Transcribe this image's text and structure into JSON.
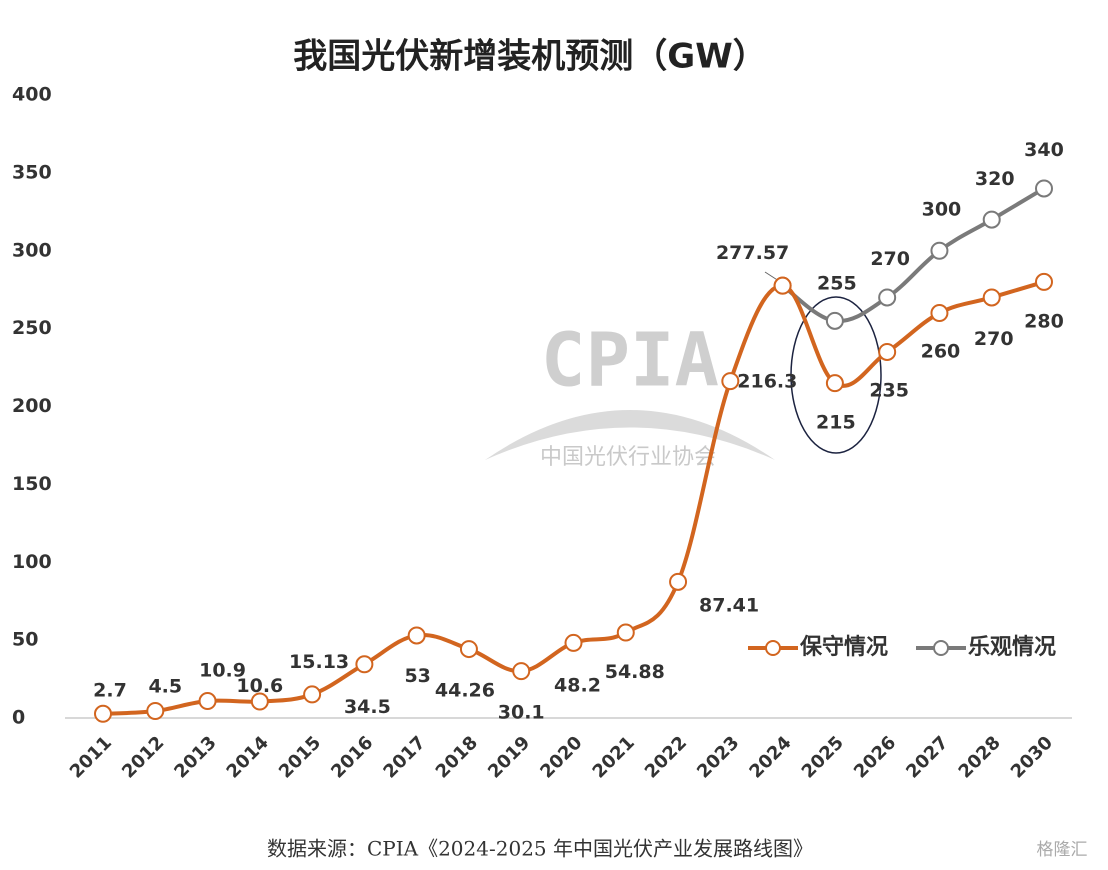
{
  "chart_data": {
    "type": "line",
    "title": "我国光伏新增装机预测（GW）",
    "categories": [
      "2011",
      "2012",
      "2013",
      "2014",
      "2015",
      "2016",
      "2017",
      "2018",
      "2019",
      "2020",
      "2021",
      "2022",
      "2023",
      "2024",
      "2025",
      "2026",
      "2027",
      "2028",
      "2030"
    ],
    "series": [
      {
        "name": "保守情况",
        "color": "#d2651f",
        "values": [
          2.7,
          4.5,
          10.9,
          10.6,
          15.13,
          34.5,
          53,
          44.26,
          30.1,
          48.2,
          54.88,
          87.41,
          216.3,
          277.57,
          215,
          235,
          260,
          270,
          280
        ]
      },
      {
        "name": "乐观情况",
        "color": "#7a7a7a",
        "values": [
          null,
          null,
          null,
          null,
          null,
          null,
          null,
          null,
          null,
          null,
          null,
          null,
          null,
          277.57,
          255,
          270,
          300,
          320,
          340
        ]
      }
    ],
    "ylim": [
      0,
      400
    ],
    "yticks": [
      0,
      50,
      100,
      150,
      200,
      250,
      300,
      350,
      400
    ],
    "watermark": {
      "logo": "CPIA",
      "org": "中国光伏行业协会"
    },
    "source": "数据来源：CPIA《2024-2025 年中国光伏产业发展路线图》",
    "brand": "格隆汇"
  }
}
